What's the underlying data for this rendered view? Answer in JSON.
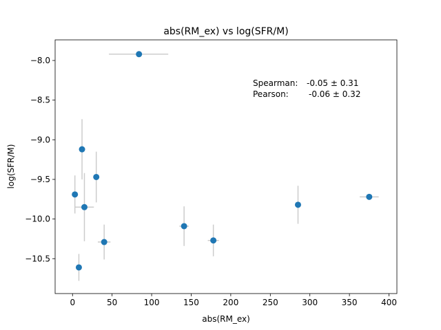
{
  "chart_data": {
    "type": "scatter",
    "title": "abs(RM_ex) vs log(SFR/M)",
    "xlabel": "abs(RM_ex)",
    "ylabel": "log(SFR/M)",
    "xlim": [
      -22,
      410
    ],
    "ylim": [
      -10.94,
      -7.74
    ],
    "xticks": [
      0,
      50,
      100,
      150,
      200,
      250,
      300,
      350,
      400
    ],
    "yticks": [
      -10.5,
      -10.0,
      -9.5,
      -9.0,
      -8.5,
      -8.0
    ],
    "xtick_labels": [
      "0",
      "50",
      "100",
      "150",
      "200",
      "250",
      "300",
      "350",
      "400"
    ],
    "ytick_labels": [
      "−10.5",
      "−10.0",
      "−9.5",
      "−9.0",
      "−8.5",
      "−8.0"
    ],
    "grid": false,
    "marker_color": "#1f77b4",
    "errorbar_color": "#cccccc",
    "points": [
      {
        "x": 84,
        "y": -7.92,
        "xerr": [
          38,
          37
        ],
        "yerr": [
          0,
          0
        ]
      },
      {
        "x": 12,
        "y": -9.12,
        "xerr": [
          0,
          0
        ],
        "yerr": [
          0.38,
          0.38
        ]
      },
      {
        "x": 30,
        "y": -9.47,
        "xerr": [
          0,
          0
        ],
        "yerr": [
          0.32,
          0.32
        ]
      },
      {
        "x": 3,
        "y": -9.69,
        "xerr": [
          0,
          0
        ],
        "yerr": [
          0.24,
          0.24
        ]
      },
      {
        "x": 15,
        "y": -9.85,
        "xerr": [
          12,
          12
        ],
        "yerr": [
          0.43,
          0.43
        ]
      },
      {
        "x": 40,
        "y": -10.29,
        "xerr": [
          8,
          8
        ],
        "yerr": [
          0.22,
          0.22
        ]
      },
      {
        "x": 8,
        "y": -10.61,
        "xerr": [
          0,
          0
        ],
        "yerr": [
          0.17,
          0.17
        ]
      },
      {
        "x": 141,
        "y": -10.09,
        "xerr": [
          6,
          6
        ],
        "yerr": [
          0.25,
          0.25
        ]
      },
      {
        "x": 178,
        "y": -10.27,
        "xerr": [
          7,
          7
        ],
        "yerr": [
          0.2,
          0.2
        ]
      },
      {
        "x": 285,
        "y": -9.82,
        "xerr": [
          3,
          3
        ],
        "yerr": [
          0.24,
          0.24
        ]
      },
      {
        "x": 375,
        "y": -9.72,
        "xerr": [
          12,
          12
        ],
        "yerr": [
          0,
          0
        ]
      }
    ],
    "annotations": [
      {
        "label": "Spearman:",
        "value": "-0.05 ± 0.31"
      },
      {
        "label": "Pearson:",
        "value": "-0.06 ± 0.32"
      }
    ]
  }
}
